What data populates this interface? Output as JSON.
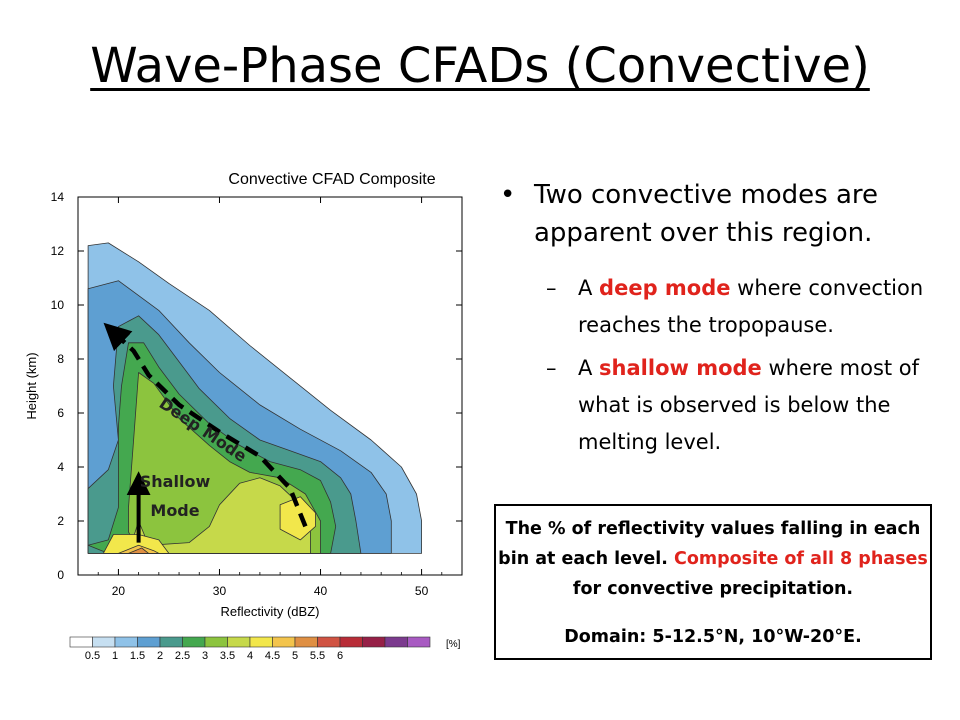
{
  "slide": {
    "title": "Wave-Phase CFADs (Convective)"
  },
  "bullets": {
    "main": "Two convective modes are apparent over this region.",
    "sub": [
      {
        "prefix": "A ",
        "highlight": "deep mode",
        "suffix": " where convection reaches the tropopause."
      },
      {
        "prefix": "A ",
        "highlight": "shallow mode",
        "suffix": " where most of what is observed is below the melting level."
      }
    ]
  },
  "caption": {
    "part1": "The % of reflectivity values falling in each bin at each level. ",
    "highlight": "Composite of all 8 phases",
    "part2": " for convective precipitation.",
    "domain": "Domain: 5-12.5°N, 10°W-20°E."
  },
  "colors": {
    "highlight": "#e0231c",
    "levels": [
      "#ffffff",
      "#c6dff1",
      "#8fc2e8",
      "#5e9fd2",
      "#4a9a8d",
      "#44a84f",
      "#8cc43e",
      "#c6d94a",
      "#f2e74b",
      "#f3c44c",
      "#df8f43",
      "#d05342",
      "#b82c37",
      "#962047",
      "#7b3a8e",
      "#a85ac2"
    ]
  },
  "chart_data": {
    "type": "heatmap",
    "title": "Convective CFAD Composite",
    "xlabel": "Reflectivity (dBZ)",
    "ylabel": "Height (km)",
    "xlim": [
      16,
      54
    ],
    "ylim": [
      0,
      14
    ],
    "xticks": [
      20,
      30,
      40,
      50
    ],
    "yticks": [
      0,
      2,
      4,
      6,
      8,
      10,
      12,
      14
    ],
    "colorbar": {
      "ticks": [
        "0.5",
        "1",
        "1.5",
        "2",
        "2.5",
        "3",
        "3.5",
        "4",
        "4.5",
        "5",
        "5.5",
        "6"
      ],
      "unit": "[%]"
    },
    "contours": [
      {
        "level": 1,
        "points": [
          [
            17,
            0.8
          ],
          [
            17,
            12.2
          ],
          [
            19,
            12.3
          ],
          [
            22,
            11.6
          ],
          [
            25,
            10.8
          ],
          [
            29,
            9.8
          ],
          [
            33,
            8.5
          ],
          [
            37,
            7.3
          ],
          [
            41,
            6.1
          ],
          [
            45,
            5.0
          ],
          [
            48,
            4.0
          ],
          [
            49.5,
            3.0
          ],
          [
            50,
            2.0
          ],
          [
            50,
            0.8
          ]
        ]
      },
      {
        "level": 1.5,
        "points": [
          [
            17,
            0.8
          ],
          [
            17,
            10.6
          ],
          [
            20,
            10.9
          ],
          [
            24,
            9.8
          ],
          [
            27,
            8.6
          ],
          [
            30,
            7.5
          ],
          [
            34,
            6.3
          ],
          [
            38,
            5.4
          ],
          [
            42,
            4.6
          ],
          [
            45,
            3.8
          ],
          [
            46.5,
            3.0
          ],
          [
            47,
            2.0
          ],
          [
            47,
            0.8
          ]
        ]
      },
      {
        "level": 2,
        "points": [
          [
            17,
            3.2
          ],
          [
            19,
            3.9
          ],
          [
            20,
            5.0
          ],
          [
            19.5,
            7.0
          ],
          [
            20,
            9.2
          ],
          [
            22,
            9.6
          ],
          [
            24,
            8.9
          ],
          [
            26,
            7.9
          ],
          [
            28,
            6.9
          ],
          [
            31,
            5.8
          ],
          [
            34,
            5.0
          ],
          [
            37,
            4.6
          ],
          [
            40,
            4.2
          ],
          [
            42,
            3.6
          ],
          [
            43,
            3.0
          ],
          [
            43.5,
            2.0
          ],
          [
            44,
            0.8
          ],
          [
            17,
            0.8
          ]
        ]
      },
      {
        "level": 2.5,
        "points": [
          [
            17,
            1.1
          ],
          [
            19,
            1.3
          ],
          [
            20,
            2.5
          ],
          [
            20,
            5.5
          ],
          [
            20.3,
            7.0
          ],
          [
            21,
            8.6
          ],
          [
            22.5,
            8.6
          ],
          [
            24,
            7.7
          ],
          [
            26,
            6.7
          ],
          [
            29,
            5.6
          ],
          [
            32,
            4.8
          ],
          [
            35,
            4.2
          ],
          [
            38,
            3.9
          ],
          [
            40,
            3.5
          ],
          [
            41,
            2.7
          ],
          [
            41.5,
            1.8
          ],
          [
            41,
            0.8
          ],
          [
            19,
            0.8
          ]
        ]
      },
      {
        "level": 3,
        "points": [
          [
            21,
            2.5
          ],
          [
            21.5,
            5.0
          ],
          [
            22,
            7.5
          ],
          [
            23.5,
            7.1
          ],
          [
            26,
            5.8
          ],
          [
            29,
            4.8
          ],
          [
            31,
            4.2
          ],
          [
            33,
            3.8
          ],
          [
            36,
            3.6
          ],
          [
            38.5,
            3.0
          ],
          [
            40,
            2.0
          ],
          [
            40,
            0.8
          ],
          [
            22,
            0.8
          ],
          [
            21,
            1.6
          ]
        ]
      },
      {
        "level": 3.5,
        "points": [
          [
            22,
            2.0
          ],
          [
            23,
            1.1
          ],
          [
            27,
            1.2
          ],
          [
            29,
            1.8
          ],
          [
            30,
            2.6
          ],
          [
            32,
            3.4
          ],
          [
            34,
            3.6
          ],
          [
            36,
            3.3
          ],
          [
            38,
            2.6
          ],
          [
            39,
            1.6
          ],
          [
            39,
            0.8
          ],
          [
            21,
            0.8
          ]
        ]
      },
      {
        "level": 4,
        "points": [
          [
            36,
            2.6
          ],
          [
            38,
            2.9
          ],
          [
            39.5,
            2.3
          ],
          [
            39.5,
            1.8
          ],
          [
            38,
            1.3
          ],
          [
            36,
            1.7
          ]
        ]
      },
      {
        "level": 4,
        "points": [
          [
            18.5,
            0.8
          ],
          [
            19.5,
            1.5
          ],
          [
            22,
            1.5
          ],
          [
            24,
            1.3
          ],
          [
            25,
            0.8
          ]
        ]
      },
      {
        "level": 4.5,
        "points": [
          [
            20,
            0.8
          ],
          [
            22,
            1.1
          ],
          [
            23.5,
            0.9
          ],
          [
            24,
            0.8
          ]
        ]
      },
      {
        "level": 5,
        "points": [
          [
            21,
            0.8
          ],
          [
            22.3,
            1.0
          ],
          [
            23,
            0.8
          ]
        ]
      }
    ],
    "annotations": [
      {
        "text": "Deep Mode",
        "type": "arrow",
        "path": [
          [
            38.5,
            1.8
          ],
          [
            37,
            3.2
          ],
          [
            34,
            4.4
          ],
          [
            30,
            5.3
          ],
          [
            26,
            6.3
          ],
          [
            23,
            7.4
          ],
          [
            21.5,
            8.3
          ],
          [
            19.5,
            9.0
          ]
        ]
      },
      {
        "text": "Shallow Mode",
        "type": "arrow",
        "path": [
          [
            22,
            1.2
          ],
          [
            22,
            3.4
          ]
        ]
      }
    ]
  }
}
